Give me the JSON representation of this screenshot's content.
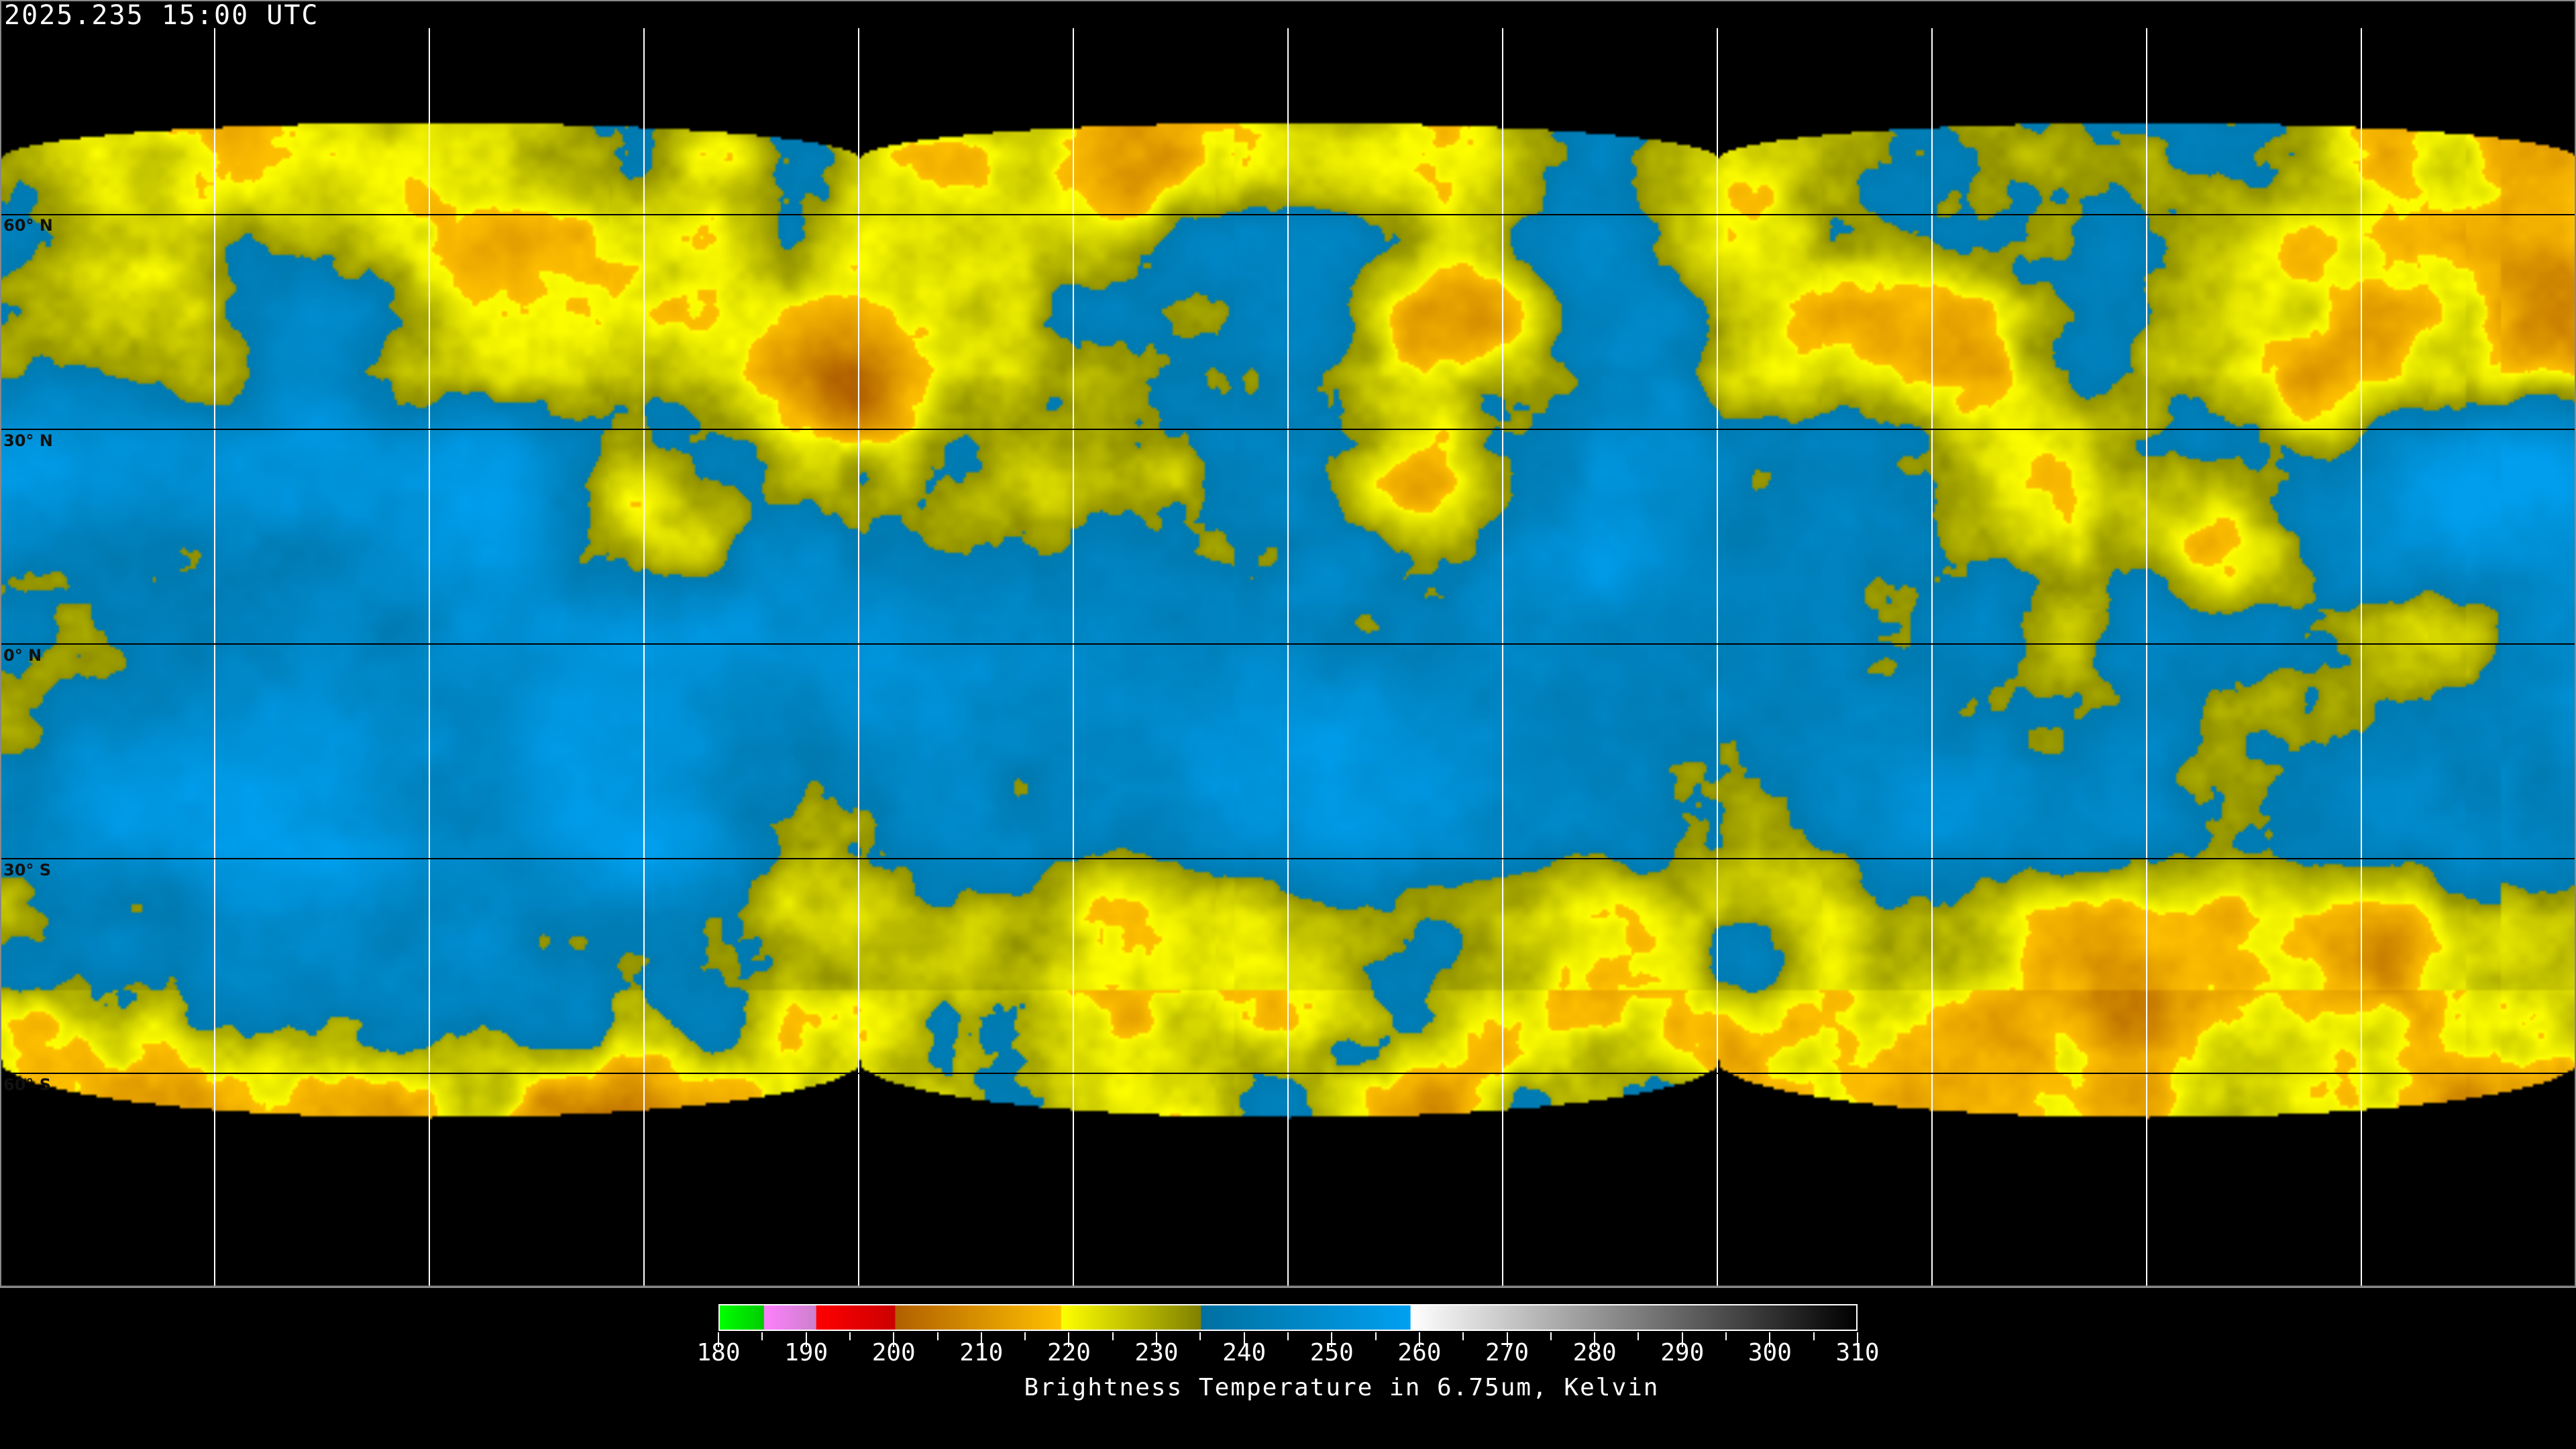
{
  "header": {
    "timestamp": "2025.235 15:00 UTC"
  },
  "map": {
    "projection": "equirectangular",
    "latitude_labels": [
      "60° N",
      "30° N",
      "0° N",
      "30° S",
      "60° S"
    ],
    "grid_spacing_degrees": 30,
    "coastline_color": "#000000",
    "polar_coastline_color": "#ffffff",
    "grid_color_on_data": "#000000",
    "grid_color_on_background": "#ffffff"
  },
  "colorbar": {
    "title": "Brightness Temperature in 6.75um, Kelvin",
    "tick_labels": [
      "180",
      "190",
      "200",
      "210",
      "220",
      "230",
      "240",
      "250",
      "260",
      "270",
      "280",
      "290",
      "300",
      "310"
    ],
    "range": [
      180,
      310
    ],
    "segments": [
      {
        "from": 180,
        "to": 185,
        "start_color": "#00ff00",
        "end_color": "#00cc00"
      },
      {
        "from": 185,
        "to": 191,
        "start_color": "#ff80ff",
        "end_color": "#cc80cc"
      },
      {
        "from": 191,
        "to": 200,
        "start_color": "#ff0000",
        "end_color": "#cc0000"
      },
      {
        "from": 200,
        "to": 219,
        "start_color": "#b06000",
        "end_color": "#ffc000"
      },
      {
        "from": 219,
        "to": 235,
        "start_color": "#ffff00",
        "end_color": "#808000"
      },
      {
        "from": 235,
        "to": 259,
        "start_color": "#0070a0",
        "end_color": "#00a0f0"
      },
      {
        "from": 259,
        "to": 310,
        "start_color": "#ffffff",
        "end_color": "#000000"
      }
    ]
  }
}
